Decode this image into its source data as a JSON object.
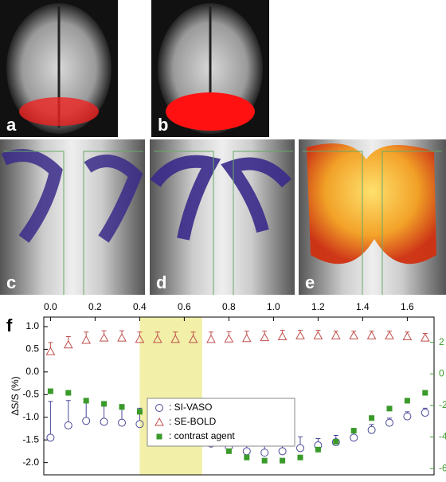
{
  "panels": {
    "a": "a",
    "b": "b",
    "c": "c",
    "d": "d",
    "e": "e"
  },
  "chart_data": {
    "type": "scatter",
    "panel_label": "f",
    "ylabel": "ΔS/S (%)",
    "x": [
      0,
      0.08,
      0.16,
      0.24,
      0.32,
      0.4,
      0.48,
      0.56,
      0.64,
      0.72,
      0.8,
      0.88,
      0.96,
      1.04,
      1.12,
      1.2,
      1.28,
      1.36,
      1.44,
      1.52,
      1.6,
      1.68
    ],
    "xlim": [
      -0.03,
      1.72
    ],
    "xticks": [
      {
        "value": 0,
        "label": "0.0"
      },
      0.2,
      0.4,
      0.6,
      0.8,
      {
        "value": 1,
        "label": "1.0"
      },
      1.2,
      1.4,
      1.6
    ],
    "ylim": [
      -2.27,
      1.21
    ],
    "yticks": [
      {
        "value": 1,
        "label": "1.0"
      },
      0.5,
      {
        "value": 0,
        "label": "0.0"
      },
      -0.5,
      {
        "value": -1,
        "label": "-1.0"
      },
      -1.5,
      {
        "value": -2,
        "label": "-2.0"
      }
    ],
    "y2lim": [
      -6.4,
      3.6
    ],
    "y2ticks": [
      2,
      0,
      -2,
      -4,
      -6
    ],
    "highlight": [
      0.4,
      0.68
    ],
    "highlight_color": "#f2f0a8",
    "series": [
      {
        "name": ": SI-VASO",
        "marker": "circle",
        "color": "#4a4a9a",
        "values": [
          -1.45,
          -1.18,
          -1.08,
          -1.1,
          -1.12,
          -1.15,
          -1.22,
          -1.28,
          -1.42,
          -1.58,
          -1.65,
          -1.75,
          -1.78,
          -1.75,
          -1.68,
          -1.62,
          -1.55,
          -1.45,
          -1.28,
          -1.12,
          -0.98,
          -0.9
        ],
        "errors": [
          0.8,
          0.55,
          0.45,
          0.4,
          0.4,
          0.35,
          0.35,
          0.35,
          0.35,
          0.35,
          0.4,
          0.4,
          0.4,
          0.4,
          0.25,
          0.15,
          0.15,
          0.15,
          0.12,
          0.1,
          0.1,
          0.1
        ]
      },
      {
        "name": ": SE-BOLD",
        "marker": "triangle",
        "color": "#c0504d",
        "values": [
          0.45,
          0.6,
          0.7,
          0.75,
          0.75,
          0.72,
          0.72,
          0.72,
          0.72,
          0.72,
          0.73,
          0.74,
          0.76,
          0.78,
          0.8,
          0.8,
          0.8,
          0.8,
          0.8,
          0.8,
          0.78,
          0.75
        ],
        "errors": [
          0.2,
          0.18,
          0.18,
          0.16,
          0.16,
          0.16,
          0.16,
          0.16,
          0.16,
          0.16,
          0.16,
          0.16,
          0.14,
          0.14,
          0.12,
          0.12,
          0.1,
          0.1,
          0.1,
          0.1,
          0.1,
          0.1
        ]
      },
      {
        "name": ": contrast agent",
        "marker": "square",
        "color": "#3a9a2a",
        "axis": "y2",
        "values": [
          -1.1,
          -1.2,
          -1.7,
          -1.9,
          -2.1,
          -2.4,
          -2.7,
          -3.1,
          -3.7,
          -4.3,
          -4.9,
          -5.3,
          -5.5,
          -5.5,
          -5.3,
          -4.8,
          -4.3,
          -3.6,
          -2.8,
          -2.2,
          -1.7,
          -1.2
        ]
      }
    ]
  }
}
